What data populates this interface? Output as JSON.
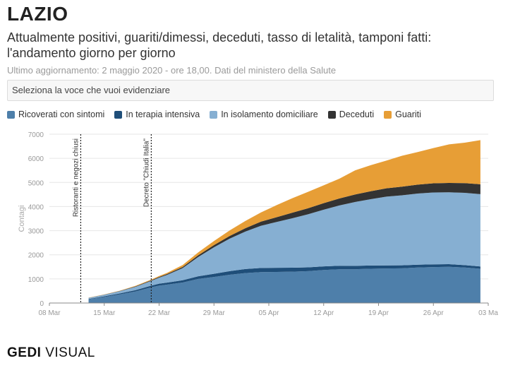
{
  "header": {
    "title": "LAZIO",
    "subtitle": "Attualmente positivi, guariti/dimessi, deceduti, tasso di letalità, tamponi fatti: l'andamento giorno per giorno",
    "updated": "Ultimo aggiornamento: 2 maggio 2020 - ore 18,00. Dati del ministero della Salute"
  },
  "selector": {
    "label": "Seleziona la voce che vuoi evidenziare"
  },
  "footer": {
    "brand_bold": "GEDI",
    "brand_light": " VISUAL"
  },
  "chart_data": {
    "type": "area",
    "stacked": true,
    "title": "",
    "xlabel": "",
    "ylabel": "Contagi",
    "ylim": [
      0,
      7000
    ],
    "xlim": [
      0,
      56
    ],
    "yticks": [
      0,
      1000,
      2000,
      3000,
      4000,
      5000,
      6000,
      7000
    ],
    "xticks": [
      {
        "x": 0,
        "label": "08 Mar"
      },
      {
        "x": 7,
        "label": "15 Mar"
      },
      {
        "x": 14,
        "label": "22 Mar"
      },
      {
        "x": 21,
        "label": "29 Mar"
      },
      {
        "x": 28,
        "label": "05 Apr"
      },
      {
        "x": 35,
        "label": "12 Apr"
      },
      {
        "x": 42,
        "label": "19 Apr"
      },
      {
        "x": 49,
        "label": "26 Apr"
      },
      {
        "x": 56,
        "label": "03 Ma"
      }
    ],
    "x": [
      5,
      7,
      9,
      11,
      13,
      14,
      15,
      17,
      19,
      21,
      23,
      25,
      27,
      29,
      31,
      33,
      35,
      37,
      39,
      41,
      43,
      45,
      47,
      49,
      51,
      53,
      55
    ],
    "series": [
      {
        "name": "Ricoverati con sintomi",
        "color": "#4e7faa",
        "values": [
          150,
          250,
          360,
          480,
          650,
          720,
          760,
          850,
          1000,
          1080,
          1170,
          1240,
          1280,
          1290,
          1300,
          1320,
          1370,
          1400,
          1400,
          1420,
          1430,
          1440,
          1470,
          1490,
          1500,
          1470,
          1420
        ]
      },
      {
        "name": "In terapia intensiva",
        "color": "#1f4e79",
        "values": [
          20,
          30,
          40,
          55,
          70,
          80,
          85,
          95,
          110,
          130,
          150,
          170,
          175,
          170,
          165,
          160,
          150,
          145,
          140,
          135,
          130,
          125,
          120,
          115,
          110,
          100,
          95
        ]
      },
      {
        "name": "In isolamento domiciliare",
        "color": "#86afd2",
        "values": [
          40,
          60,
          90,
          140,
          200,
          250,
          320,
          500,
          800,
          1100,
          1350,
          1550,
          1750,
          1900,
          2050,
          2200,
          2350,
          2500,
          2650,
          2750,
          2850,
          2900,
          2950,
          2980,
          2980,
          3000,
          3000
        ]
      },
      {
        "name": "Deceduti",
        "color": "#333333",
        "values": [
          5,
          8,
          12,
          18,
          25,
          30,
          35,
          50,
          70,
          90,
          110,
          140,
          170,
          200,
          230,
          250,
          270,
          290,
          310,
          330,
          345,
          360,
          370,
          380,
          390,
          400,
          410
        ]
      },
      {
        "name": "Guariti",
        "color": "#e79e36",
        "values": [
          5,
          8,
          10,
          20,
          30,
          40,
          50,
          80,
          120,
          170,
          230,
          300,
          380,
          500,
          600,
          680,
          740,
          820,
          1000,
          1080,
          1150,
          1280,
          1350,
          1460,
          1600,
          1680,
          1830
        ]
      }
    ],
    "annotations": [
      {
        "x": 4,
        "label": "Ristoranti e negozi chiusi"
      },
      {
        "x": 13,
        "label": "Decreto \"Chiudi Italia\""
      }
    ]
  }
}
